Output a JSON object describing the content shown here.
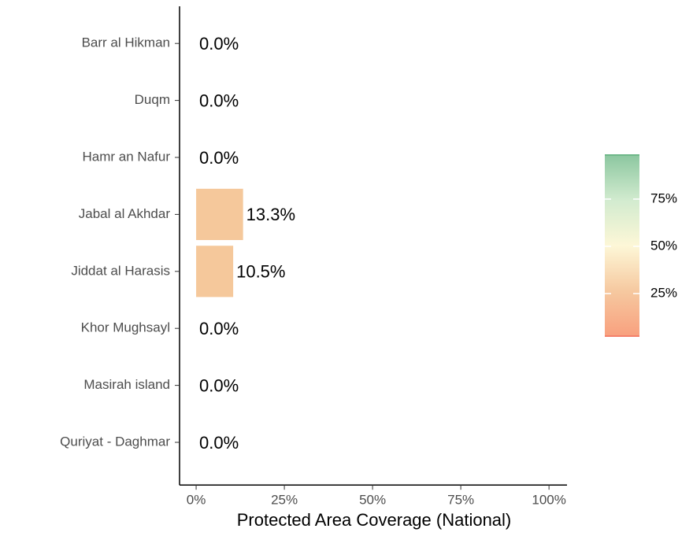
{
  "chart_data": {
    "type": "bar",
    "orientation": "horizontal",
    "x_label": "Protected Area Coverage (National)",
    "categories": [
      "Barr al Hikman",
      "Duqm",
      "Hamr an Nafur",
      "Jabal al Akhdar",
      "Jiddat al Harasis",
      "Khor Mughsayl",
      "Masirah island",
      "Quriyat - Daghmar"
    ],
    "values": [
      0,
      0,
      0,
      13.3,
      10.5,
      0,
      0,
      0
    ],
    "value_labels": [
      "0.0%",
      "0.0%",
      "0.0%",
      "13.3%",
      "10.5%",
      "0.0%",
      "0.0%",
      "0.0%"
    ],
    "color": "#f5c89b",
    "xlim": [
      -4.7,
      105.1
    ],
    "xticks": [
      {
        "value": 0,
        "label": "0%"
      },
      {
        "value": 25,
        "label": "25%"
      },
      {
        "value": 50,
        "label": "50%"
      },
      {
        "value": 75,
        "label": "75%"
      },
      {
        "value": 100,
        "label": "100%"
      }
    ],
    "colorbar": {
      "lim": [
        2.5,
        98.3
      ],
      "ticks": [
        {
          "value": 25,
          "label": "25%"
        },
        {
          "value": 50,
          "label": "50%"
        },
        {
          "value": 75,
          "label": "75%"
        }
      ],
      "colors": [
        "#f8a07e",
        "#f6c9a0",
        "#fdf7d7",
        "#d2ebcf",
        "#8cc7a0"
      ]
    }
  }
}
